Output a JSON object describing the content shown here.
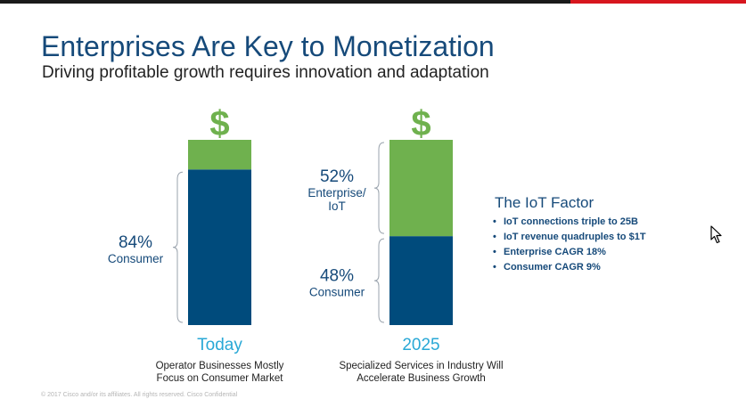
{
  "slide": {
    "title": "Enterprises Are Key to Monetization",
    "subtitle": "Driving profitable growth requires innovation and adaptation",
    "footer": "© 2017 Cisco and/or its affiliates. All rights reserved. Cisco Confidential"
  },
  "iot_factor": {
    "title": "The IoT Factor",
    "items": [
      "IoT connections triple to 25B",
      "IoT revenue quadruples to $1T",
      "Enterprise CAGR 18%",
      "Consumer CAGR 9%"
    ]
  },
  "colors": {
    "enterprise": "#6fb14e",
    "consumer": "#004b7c",
    "title": "#164a7a",
    "year": "#29a8d6",
    "dollar": "#6fb14e"
  },
  "chart_data": {
    "type": "bar",
    "stacked": true,
    "ylim": [
      0,
      100
    ],
    "categories": [
      "Today",
      "2025"
    ],
    "category_captions": [
      [
        "Operator Businesses Mostly",
        "Focus on Consumer Market"
      ],
      [
        "Specialized Services in Industry Will",
        "Accelerate Business Growth"
      ]
    ],
    "icon_above_bars": "$",
    "series": [
      {
        "name": "Consumer",
        "values": [
          84,
          48
        ]
      },
      {
        "name": "Enterprise/IoT",
        "values": [
          16,
          52
        ]
      }
    ],
    "annotations": [
      {
        "category": "Today",
        "series": "Consumer",
        "value_label": "84%",
        "lines": [
          "Consumer"
        ]
      },
      {
        "category": "2025",
        "series": "Enterprise/IoT",
        "value_label": "52%",
        "lines": [
          "Enterprise/",
          "IoT"
        ]
      },
      {
        "category": "2025",
        "series": "Consumer",
        "value_label": "48%",
        "lines": [
          "Consumer"
        ]
      }
    ]
  }
}
